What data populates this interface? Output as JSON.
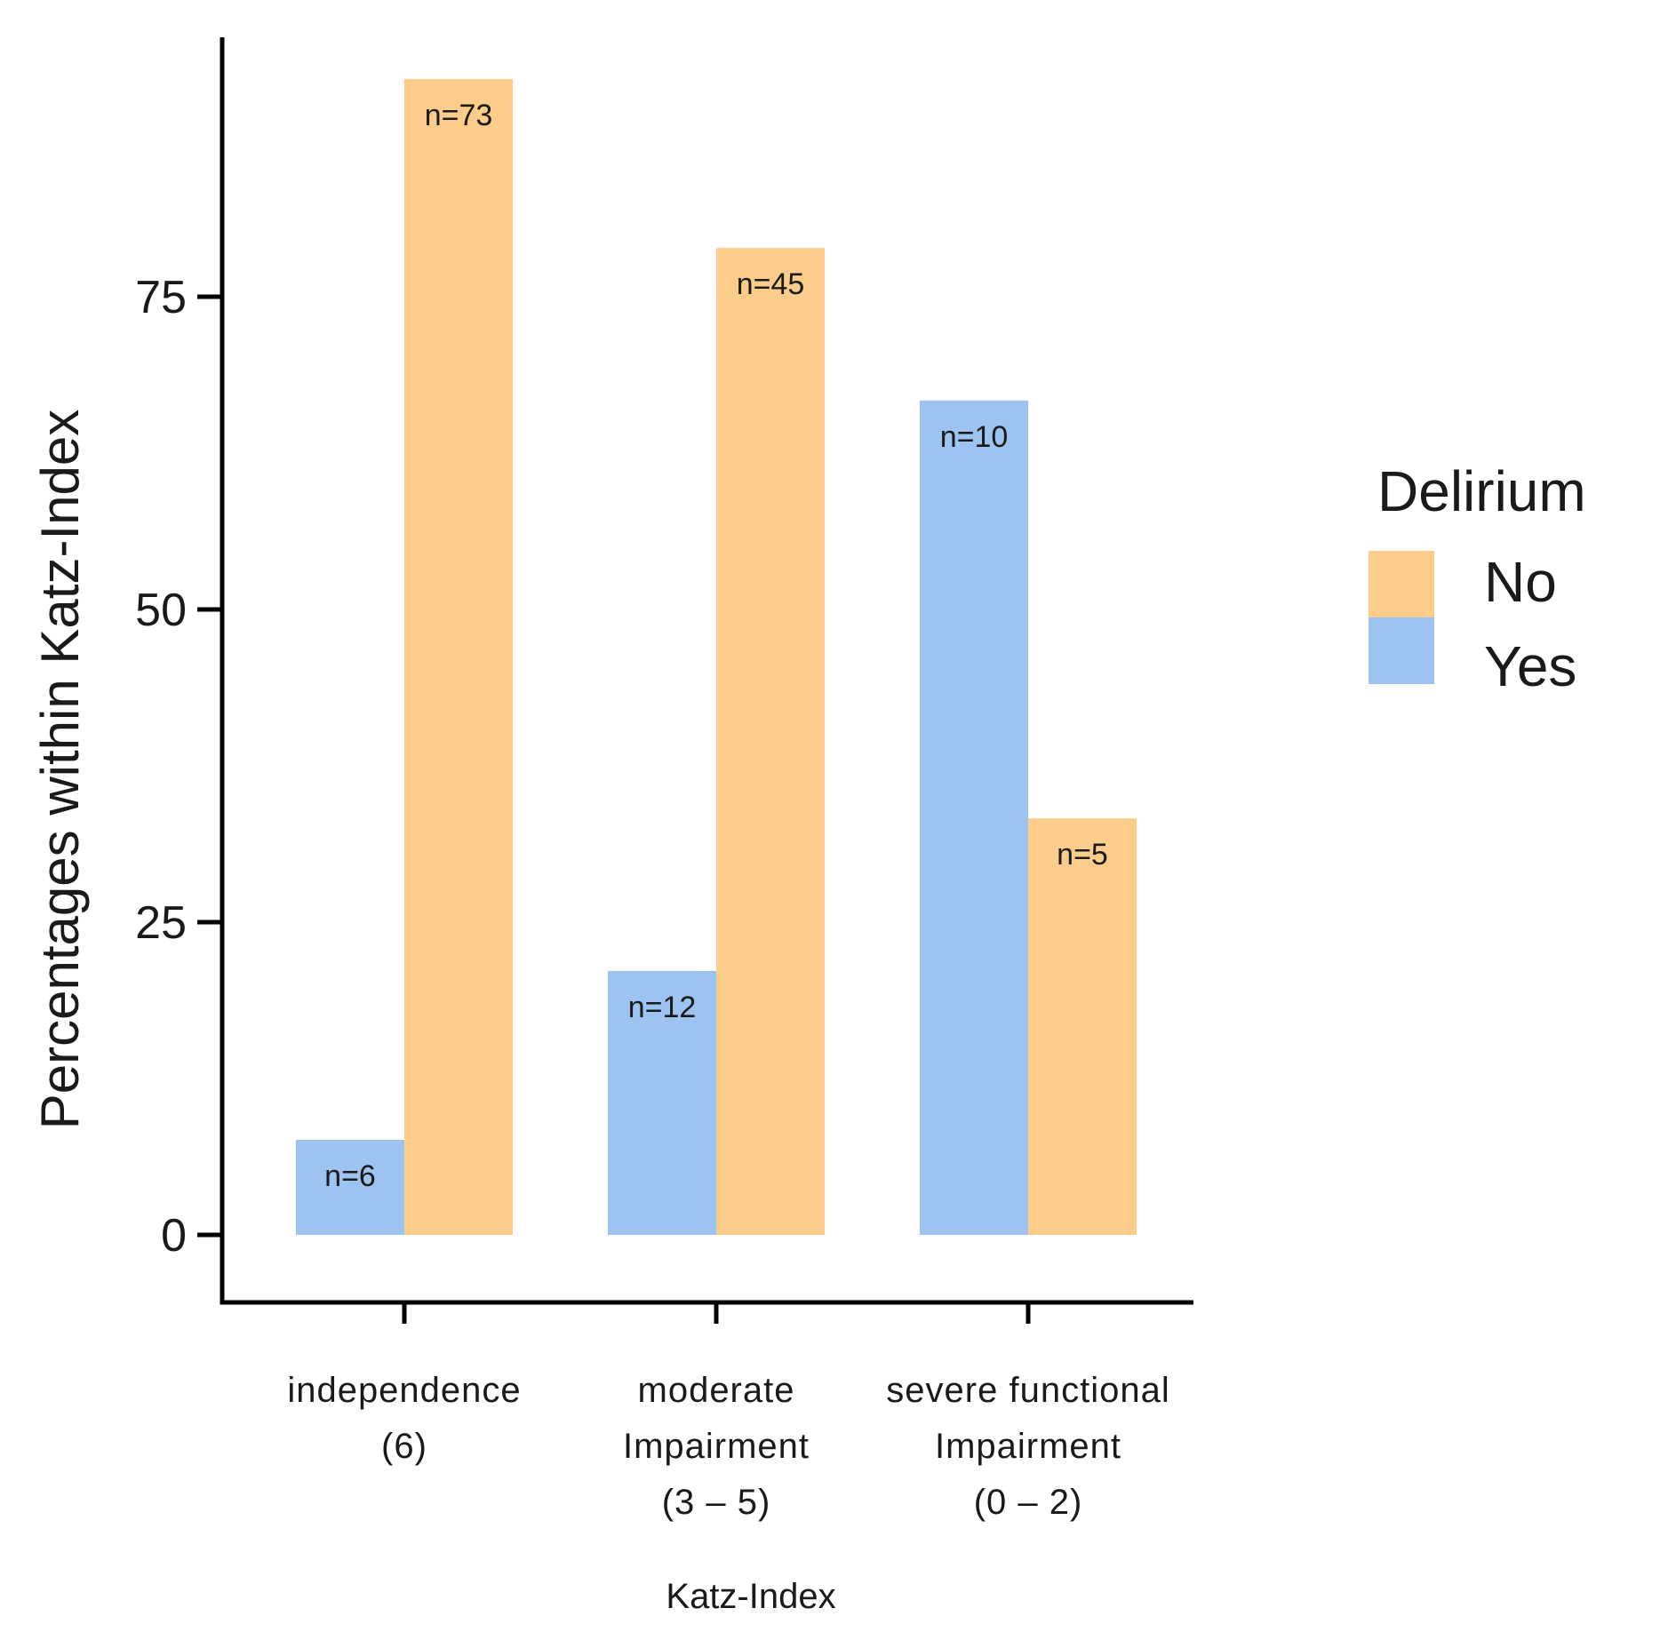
{
  "chart_data": {
    "type": "bar",
    "title": "",
    "xlabel": "Katz-Index",
    "ylabel": "Percentages within Katz-Index",
    "ylim": [
      -5,
      95
    ],
    "yticks": [
      0,
      25,
      50,
      75
    ],
    "grid": false,
    "legend_position": "right",
    "categories": [
      [
        "independence",
        "(6)"
      ],
      [
        "moderate",
        "Impairment",
        "(3 – 5)"
      ],
      [
        "severe functional",
        "Impairment",
        "(0 – 2)"
      ]
    ],
    "legend": {
      "title": "Delirium",
      "entries": [
        {
          "name": "No",
          "color": "#fccd8a"
        },
        {
          "name": "Yes",
          "color": "#9dc4f0"
        }
      ]
    },
    "series": [
      {
        "name": "Yes",
        "color": "#9dc4f0",
        "values": [
          7.6,
          21.1,
          66.7
        ],
        "labels": [
          "n=6",
          "n=12",
          "n=10"
        ]
      },
      {
        "name": "No",
        "color": "#fccd8a",
        "values": [
          92.4,
          78.9,
          33.3
        ],
        "labels": [
          "n=73",
          "n=45",
          "n=5"
        ]
      }
    ]
  }
}
